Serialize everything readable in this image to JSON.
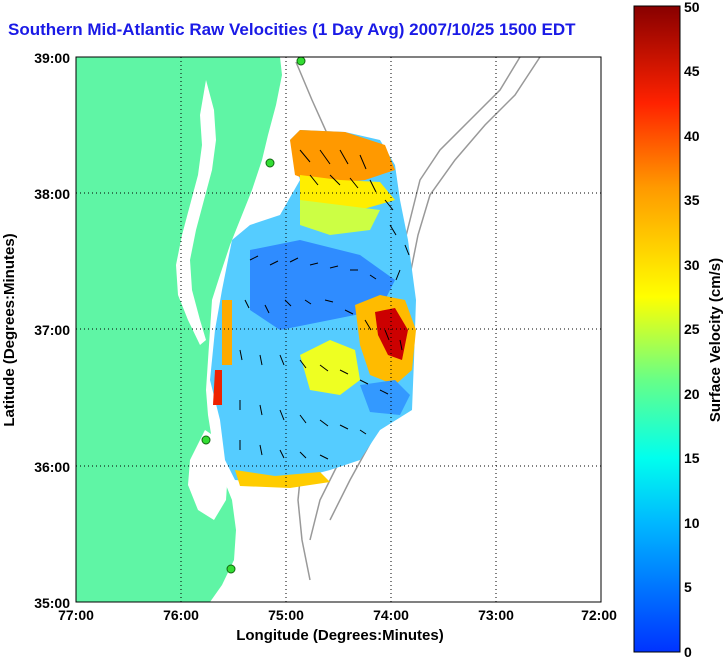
{
  "chart_data": {
    "type": "heatmap",
    "title": "Southern Mid-Atlantic Raw Velocities (1 Day Avg) 2007/10/25 1500 EDT",
    "xlabel": "Longitude (Degrees:Minutes)",
    "ylabel": "Latitude (Degrees:Minutes)",
    "colorbar_label": "Surface Velocity (cm/s)",
    "x_ticks": [
      "77:00",
      "76:00",
      "75:00",
      "74:00",
      "73:00",
      "72:00"
    ],
    "y_ticks": [
      "39:00",
      "38:00",
      "37:00",
      "36:00",
      "35:00"
    ],
    "colorbar_ticks": [
      "50",
      "45",
      "40",
      "35",
      "30",
      "25",
      "20",
      "15",
      "10",
      "5",
      "0"
    ],
    "xlim": [
      "77:00 W",
      "72:00 W"
    ],
    "ylim": [
      "35:00 N",
      "39:00 N"
    ],
    "clim": [
      0,
      50
    ],
    "grid": true,
    "land_color": "#5ff5a5",
    "radar_sites_color": "#33dd33"
  }
}
